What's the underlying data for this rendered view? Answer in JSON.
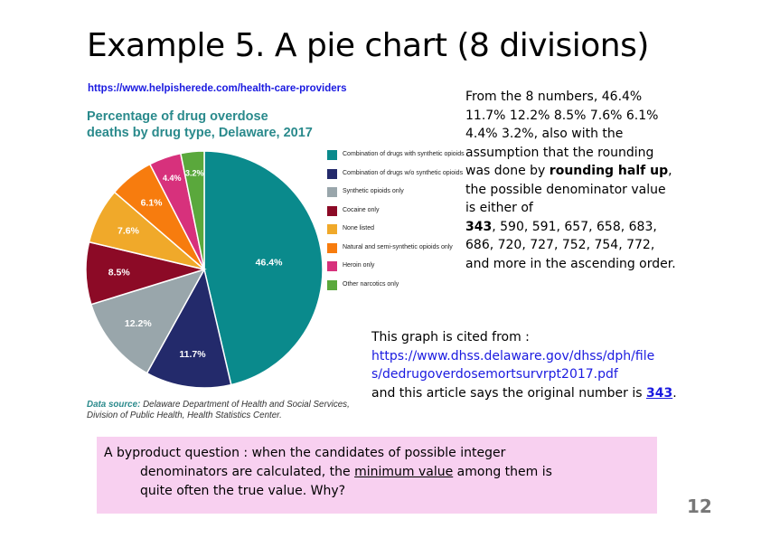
{
  "slide": {
    "title": "Example 5. A pie chart (8 divisions)",
    "source_url": "https://www.helpisherede.com/health-care-providers",
    "page_number": "12"
  },
  "chart_data": {
    "type": "pie",
    "title_line1": "Percentage of drug overdose",
    "title_line2": "deaths by drug type, Delaware, 2017",
    "slices": [
      {
        "name": "Combination of drugs with synthetic opioids",
        "value": 46.4,
        "label": "46.4%",
        "color": "#0a8a8c"
      },
      {
        "name": "Combination of drugs w/o synthetic opioids",
        "value": 11.7,
        "label": "11.7%",
        "color": "#232a6b"
      },
      {
        "name": "Synthetic opioids only",
        "value": 12.2,
        "label": "12.2%",
        "color": "#99a6ab"
      },
      {
        "name": "Cocaine only",
        "value": 8.5,
        "label": "8.5%",
        "color": "#8c0a26"
      },
      {
        "name": "None listed",
        "value": 7.6,
        "label": "7.6%",
        "color": "#f0a92a"
      },
      {
        "name": "Natural and semi-synthetic opioids only",
        "value": 6.1,
        "label": "6.1%",
        "color": "#f77c0e"
      },
      {
        "name": "Heroin only",
        "value": 4.4,
        "label": "4.4%",
        "color": "#d7317c"
      },
      {
        "name": "Other narcotics only",
        "value": 3.2,
        "label": "3.2%",
        "color": "#5aa83c"
      }
    ],
    "legend_position": "right",
    "data_source_label": "Data source:",
    "data_source_line1": " Delaware Department of Health and Social Services,",
    "data_source_line2": "Division of Public Health, Health Statistics Center."
  },
  "explanation": {
    "line1": "From the 8 numbers, 46.4%",
    "line2": "11.7% 12.2% 8.5% 7.6% 6.1%",
    "line3": "4.4% 3.2%, also with the",
    "line4": "assumption that the rounding",
    "line5_a": "was done by ",
    "line5_b": "rounding half up",
    "line5_c": ",",
    "line6": "the possible denominator value",
    "line7": "is either of",
    "line8_a": "343",
    "line8_b": ", 590, 591, 657, 658, 683,",
    "line9": "686, 720, 727, 752, 754, 772,",
    "line10": "and more in the ascending order."
  },
  "citation": {
    "line1": "This graph is cited from :",
    "url_line1": "https://www.dhss.delaware.gov/dhss/dph/file",
    "url_line2": "s/dedrugoverdosemortsurvrpt2017.pdf",
    "line4_a": "and this article says the original number is ",
    "line4_link": "343",
    "line4_b": "."
  },
  "question": {
    "line1": "A byproduct question :  when the candidates of possible integer",
    "line2_a": "denominators are calculated, the ",
    "line2_u": "minimum value",
    "line2_b": " among them is",
    "line3": "quite often the true value.  Why?"
  }
}
